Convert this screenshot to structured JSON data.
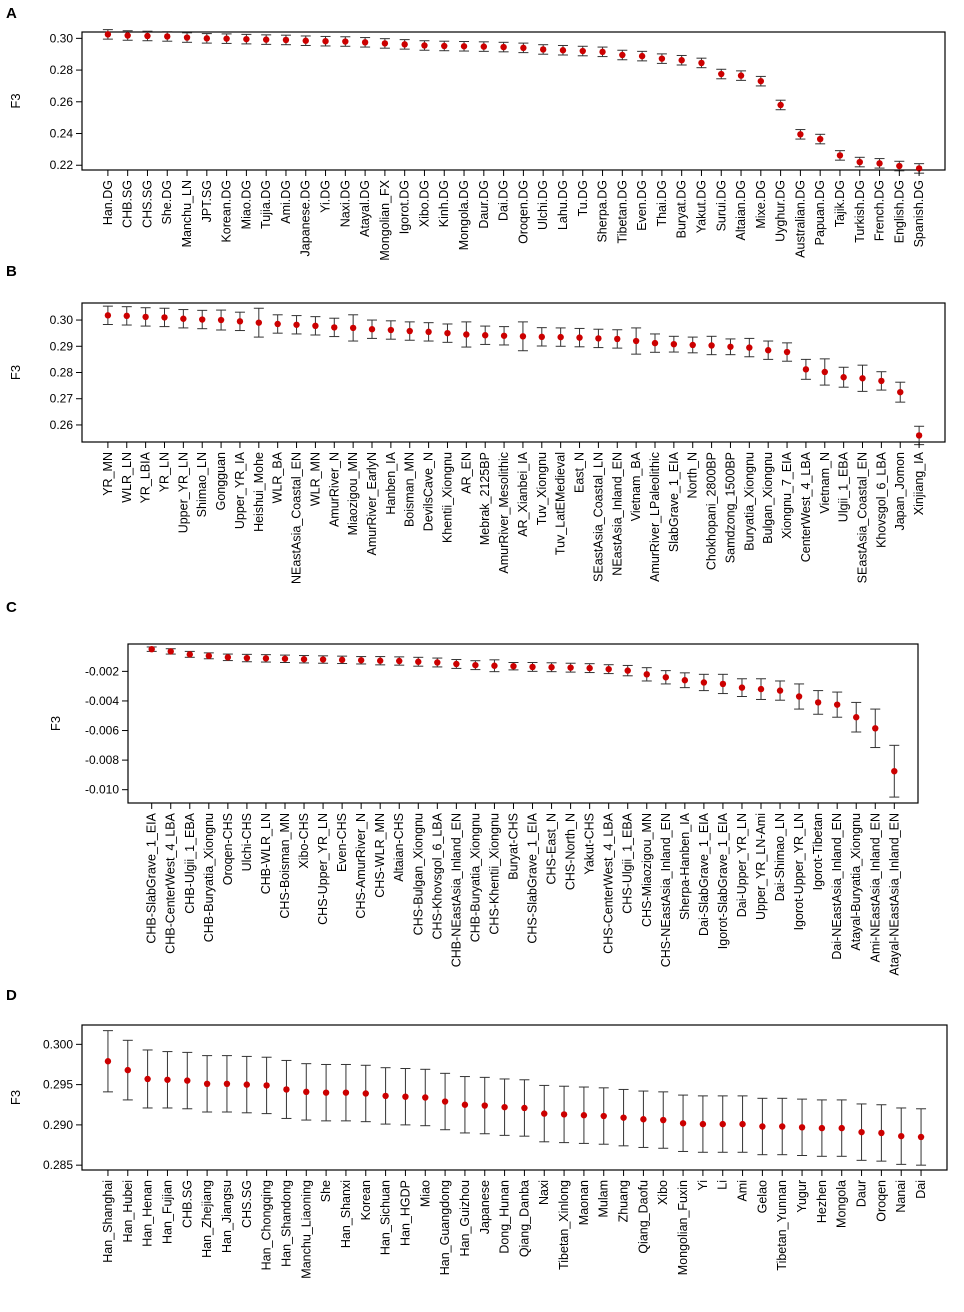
{
  "chart_data": [
    {
      "type": "scatter",
      "panel_label": "A",
      "ylabel": "F3",
      "xlabel": "",
      "ylim": [
        0.217,
        0.304
      ],
      "yticks": [
        "0.30",
        "0.28",
        "0.26",
        "0.24",
        "0.22"
      ],
      "categories": [
        "Han.DG",
        "CHB.SG",
        "CHS.SG",
        "She.DG",
        "Manchu_LN",
        "JPT.SG",
        "Korean.DG",
        "Miao.DG",
        "Tujia.DG",
        "Ami.DG",
        "Japanese.DG",
        "Yi.DG",
        "Naxi.DG",
        "Atayal.DG",
        "Mongolian_FX",
        "Igorot.DG",
        "Xibo.DG",
        "Kinh.DG",
        "Mongola.DG",
        "Daur.DG",
        "Dai.DG",
        "Oroqen.DG",
        "Ulchi.DG",
        "Lahu.DG",
        "Tu.DG",
        "Sherpa.DG",
        "Tibetan.DG",
        "Even.DG",
        "Thai.DG",
        "Buryat.DG",
        "Yakut.DG",
        "Surui.DG",
        "Altaian.DG",
        "Mixe.DG",
        "Uyghur.DG",
        "Australian.DG",
        "Papuan.DG",
        "Tajik.DG",
        "Turkish.DG",
        "French.DG",
        "English.DG",
        "Spanish.DG"
      ],
      "values": [
        0.3025,
        0.3018,
        0.3015,
        0.3012,
        0.3005,
        0.3,
        0.2998,
        0.2995,
        0.2992,
        0.299,
        0.2985,
        0.2982,
        0.298,
        0.2975,
        0.2968,
        0.2962,
        0.2955,
        0.2952,
        0.295,
        0.2948,
        0.2945,
        0.294,
        0.293,
        0.2925,
        0.292,
        0.2915,
        0.2895,
        0.2888,
        0.2872,
        0.2862,
        0.2845,
        0.2775,
        0.2765,
        0.273,
        0.258,
        0.2395,
        0.2365,
        0.2262,
        0.222,
        0.2212,
        0.2195,
        0.218
      ],
      "errors": [
        0.003,
        0.003,
        0.003,
        0.003,
        0.003,
        0.003,
        0.003,
        0.003,
        0.003,
        0.003,
        0.003,
        0.003,
        0.003,
        0.003,
        0.003,
        0.003,
        0.003,
        0.003,
        0.003,
        0.003,
        0.003,
        0.003,
        0.003,
        0.003,
        0.003,
        0.003,
        0.003,
        0.003,
        0.003,
        0.003,
        0.003,
        0.003,
        0.003,
        0.003,
        0.003,
        0.003,
        0.003,
        0.003,
        0.003,
        0.003,
        0.003,
        0.003
      ]
    },
    {
      "type": "scatter",
      "panel_label": "B",
      "ylabel": "F3",
      "xlabel": "",
      "ylim": [
        0.2535,
        0.3065
      ],
      "yticks": [
        "0.30",
        "0.29",
        "0.28",
        "0.27",
        "0.26"
      ],
      "categories": [
        "YR_MN",
        "WLR_LN",
        "YR_LBIA",
        "YR_LN",
        "Upper_YR_LN",
        "Shimao_LN",
        "Gongguan",
        "Upper_YR_IA",
        "Heishui_Mohe",
        "WLR_BA",
        "NEastAsia_Coastal_EN",
        "WLR_MN",
        "AmurRiver_N",
        "Miaozigou_MN",
        "AmurRiver_EarlyN",
        "Hanben_IA",
        "Boisman_MN",
        "DevilsCave_N",
        "Khentii_Xiongnu",
        "AR_EN",
        "Mebrak_2125BP",
        "AmurRiver_Mesolithic",
        "AR_Xianbei_IA",
        "Tuv_Xiongnu",
        "Tuv_LatEMedieval",
        "East_N",
        "SEastAsia_Coastal_LN",
        "NEastAsia_Inland_EN",
        "Vietnam_BA",
        "AmurRiver_LPaleolithic",
        "SlabGrave_1_EIA",
        "North_N",
        "Chokhopani_2800BP",
        "Samdzong_1500BP",
        "Buryatia_Xiongnu",
        "Bulgan_Xiongnu",
        "Xiongnu_7_EIA",
        "CenterWest_4_LBA",
        "Vietnam_N",
        "Ulgii_1_EBA",
        "SEastAsia_Coastal_EN",
        "Khovsgol_6_LBA",
        "Japan_Jomon",
        "Xinjiang_IA"
      ],
      "values": [
        0.3018,
        0.3016,
        0.3012,
        0.301,
        0.3005,
        0.3002,
        0.3,
        0.2995,
        0.299,
        0.2985,
        0.2982,
        0.2978,
        0.2972,
        0.297,
        0.2965,
        0.2962,
        0.2958,
        0.2955,
        0.295,
        0.2945,
        0.2942,
        0.294,
        0.2938,
        0.2936,
        0.2935,
        0.2933,
        0.293,
        0.2928,
        0.292,
        0.2912,
        0.2908,
        0.2905,
        0.2903,
        0.2898,
        0.2895,
        0.2885,
        0.2878,
        0.2812,
        0.2802,
        0.2782,
        0.2778,
        0.2768,
        0.2725,
        0.256
      ],
      "errors": [
        0.0035,
        0.0035,
        0.0035,
        0.0035,
        0.0035,
        0.0035,
        0.0038,
        0.0035,
        0.0055,
        0.0035,
        0.0035,
        0.0035,
        0.0035,
        0.005,
        0.0035,
        0.0035,
        0.0035,
        0.0035,
        0.0035,
        0.0048,
        0.0035,
        0.0035,
        0.0055,
        0.0035,
        0.0035,
        0.0035,
        0.0035,
        0.0035,
        0.005,
        0.0035,
        0.003,
        0.003,
        0.0035,
        0.003,
        0.0035,
        0.0035,
        0.0035,
        0.0038,
        0.005,
        0.0038,
        0.005,
        0.0035,
        0.0038,
        0.0035
      ]
    },
    {
      "type": "scatter",
      "panel_label": "C",
      "ylabel": "F3",
      "xlabel": "",
      "ylim": [
        -0.0109,
        -0.00015
      ],
      "yticks": [
        "-0.002",
        "-0.004",
        "-0.006",
        "-0.008",
        "-0.010"
      ],
      "categories": [
        "CHB-SlabGrave_1_EIA",
        "CHB-CenterWest_4_LBA",
        "CHB-Ulgii_1_EBA",
        "CHB-Buryatia_Xiongnu",
        "Oroqen-CHS",
        "Ulchi-CHS",
        "CHB-WLR_LN",
        "CHS-Boisman_MN",
        "Xibo-CHS",
        "CHS-Upper_YR_LN",
        "Even-CHS",
        "CHS-AmurRiver_N",
        "CHS-WLR_MN",
        "Altaian-CHS",
        "CHS-Bulgan_Xiongnu",
        "CHS-Khovsgol_6_LBA",
        "CHB-NEastAsia_Inland_EN",
        "CHB-Buryatia_Xiongnu",
        "CHS-Khentii_Xiongnu",
        "Buryat-CHS",
        "CHS-SlabGrave_1_EIA",
        "CHS-East_N",
        "CHS-North_N",
        "Yakut-CHS",
        "CHS-CenterWest_4_LBA",
        "CHS-Ulgii_1_EBA",
        "CHS-Miaozigou_MN",
        "CHS-NEastAsia_Inland_EN",
        "Sherpa-Hanben_IA",
        "Dai-SlabGrave_1_EIA",
        "Igorot-SlabGrave_1_EIA",
        "Dai-Upper_YR_LN",
        "Upper_YR_LN-Ami",
        "Dai-Shimao_LN",
        "Igorot-Upper_YR_LN",
        "Igorot-Tibetan",
        "Dai-NEastAsia_Inland_EN",
        "Atayal-Buryatia_Xiongnu",
        "Ami-NEastAsia_Inland_EN",
        "Atayal-NEastAsia_Inland_EN"
      ],
      "values": [
        -0.0005,
        -0.00065,
        -0.00085,
        -0.00095,
        -0.00105,
        -0.0011,
        -0.00112,
        -0.00115,
        -0.00118,
        -0.0012,
        -0.00122,
        -0.00125,
        -0.00128,
        -0.0013,
        -0.00135,
        -0.0014,
        -0.0015,
        -0.00158,
        -0.00162,
        -0.00165,
        -0.0017,
        -0.00172,
        -0.00175,
        -0.00178,
        -0.00185,
        -0.00195,
        -0.0022,
        -0.0024,
        -0.0026,
        -0.00275,
        -0.00285,
        -0.0031,
        -0.0032,
        -0.0033,
        -0.0037,
        -0.0041,
        -0.00425,
        -0.0051,
        -0.00585,
        -0.00875
      ],
      "errors": [
        0.00015,
        0.00018,
        0.0002,
        0.0002,
        0.00022,
        0.00025,
        0.00025,
        0.00025,
        0.00025,
        0.00025,
        0.00025,
        0.00025,
        0.00028,
        0.00028,
        0.0003,
        0.0003,
        0.0003,
        0.0003,
        0.0004,
        0.00025,
        0.0003,
        0.0003,
        0.0003,
        0.0003,
        0.0003,
        0.00035,
        0.00045,
        0.00045,
        0.0005,
        0.00055,
        0.00065,
        0.0006,
        0.0007,
        0.00065,
        0.00085,
        0.0008,
        0.00085,
        0.001,
        0.0013,
        0.00175
      ]
    },
    {
      "type": "scatter",
      "panel_label": "D",
      "ylabel": "F3",
      "xlabel": "",
      "ylim": [
        0.2844,
        0.3024
      ],
      "yticks": [
        "0.300",
        "0.295",
        "0.290",
        "0.285"
      ],
      "categories": [
        "Han_Shanghai",
        "Han_Hubei",
        "Han_Henan",
        "Han_Fujian",
        "CHB.SG",
        "Han_Zhejiang",
        "Han_Jiangsu",
        "CHS.SG",
        "Han_Chongqing",
        "Han_Shandong",
        "Manchu_Liaoning",
        "She",
        "Han_Shanxi",
        "Korean",
        "Han_Sichuan",
        "Han_HGDP",
        "Miao",
        "Han_Guangdong",
        "Han_Guizhou",
        "Japanese",
        "Dong_Hunan",
        "Qiang_Danba",
        "Naxi",
        "Tibetan_Xinlong",
        "Maonan",
        "Mulam",
        "Zhuang",
        "Qiang_Daofu",
        "Xibo",
        "Mongolian_Fuxin",
        "Yi",
        "Li",
        "Ami",
        "Gelao",
        "Tibetan_Yunnan",
        "Yugur",
        "Hezhen",
        "Mongola",
        "Daur",
        "Oroqen",
        "Nanai",
        "Dai"
      ],
      "values": [
        0.2979,
        0.2968,
        0.2957,
        0.2956,
        0.2955,
        0.2951,
        0.2951,
        0.295,
        0.2949,
        0.2944,
        0.2941,
        0.294,
        0.294,
        0.2939,
        0.2936,
        0.2935,
        0.2934,
        0.2929,
        0.2925,
        0.2924,
        0.2922,
        0.2921,
        0.2914,
        0.2913,
        0.2912,
        0.2911,
        0.2909,
        0.2907,
        0.2906,
        0.2902,
        0.2901,
        0.2901,
        0.2901,
        0.2898,
        0.2898,
        0.2897,
        0.2896,
        0.2896,
        0.2891,
        0.289,
        0.2886,
        0.2885
      ],
      "errors": [
        0.0038,
        0.0037,
        0.0036,
        0.0035,
        0.0035,
        0.0035,
        0.0035,
        0.0035,
        0.0035,
        0.0036,
        0.0035,
        0.0035,
        0.0035,
        0.0035,
        0.0035,
        0.0035,
        0.0035,
        0.0035,
        0.0035,
        0.0035,
        0.0035,
        0.0035,
        0.0035,
        0.0035,
        0.0035,
        0.0035,
        0.0035,
        0.0035,
        0.0035,
        0.0035,
        0.0035,
        0.0035,
        0.0035,
        0.0035,
        0.0035,
        0.0035,
        0.0035,
        0.0035,
        0.0035,
        0.0035,
        0.0035,
        0.0035
      ]
    }
  ],
  "colors": {
    "point": "#cc0000",
    "errorbar": "#333333",
    "axis": "#000000"
  }
}
